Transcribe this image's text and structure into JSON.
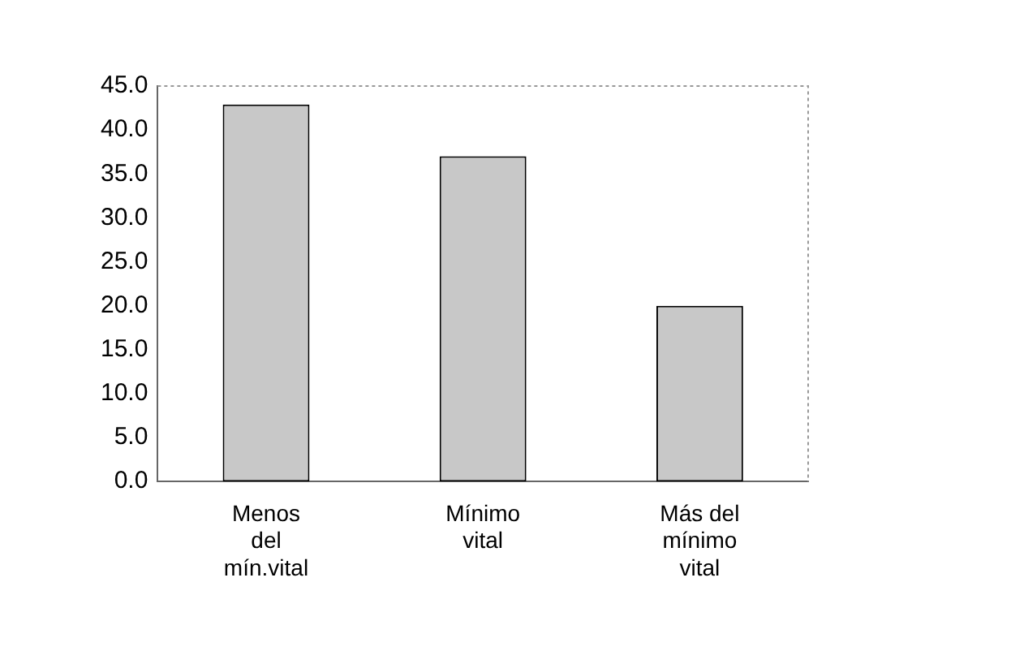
{
  "chart_data": {
    "type": "bar",
    "categories": [
      "Menos del mín.vital",
      "Mínimo vital",
      "Más del mínimo vital"
    ],
    "values": [
      42.9,
      37.0,
      20.0
    ],
    "color": "#c8c8c8",
    "ylim": [
      0,
      45
    ],
    "yticks": [
      {
        "value": 0,
        "label": "0.0"
      },
      {
        "value": 5,
        "label": "5.0"
      },
      {
        "value": 10,
        "label": "10.0"
      },
      {
        "value": 15,
        "label": "15.0"
      },
      {
        "value": 20,
        "label": "20.0"
      },
      {
        "value": 25,
        "label": "25.0"
      },
      {
        "value": 30,
        "label": "30.0"
      },
      {
        "value": 35,
        "label": "35.0"
      },
      {
        "value": 40,
        "label": "40.0"
      },
      {
        "value": 45,
        "label": "45.0"
      }
    ],
    "grid": false,
    "legend": false
  }
}
